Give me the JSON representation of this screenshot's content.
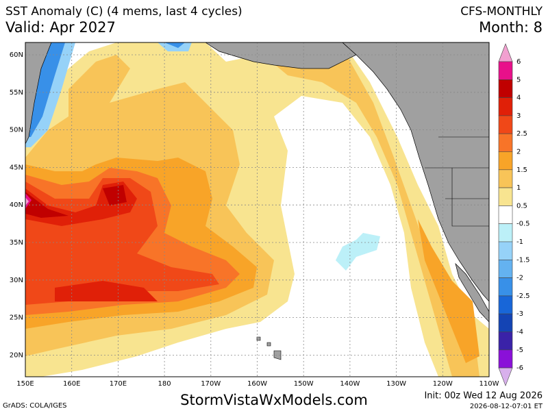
{
  "header": {
    "title": "SST Anomaly (C) (4 mems, last 4 cycles)",
    "valid": "Valid: Apr 2027",
    "model": "CFS-MONTHLY",
    "month": "Month: 8"
  },
  "map": {
    "lat_labels": [
      "60N",
      "55N",
      "50N",
      "45N",
      "40N",
      "35N",
      "30N",
      "25N",
      "20N"
    ],
    "lon_labels": [
      "150E",
      "160E",
      "170E",
      "180",
      "170W",
      "160W",
      "150W",
      "140W",
      "130W",
      "120W",
      "110W"
    ]
  },
  "colorbar": {
    "levels": [
      6,
      5,
      4,
      3,
      2.5,
      2,
      1.5,
      1,
      0.5,
      -0.5,
      -1,
      -1.5,
      -2,
      -2.5,
      -3,
      -4,
      -5,
      -6
    ],
    "colors": [
      "#f2a0d0",
      "#e8108a",
      "#c00000",
      "#e02008",
      "#f04818",
      "#f87428",
      "#f8a428",
      "#f8c458",
      "#f8e490",
      "#ffffff",
      "#bcf0f8",
      "#96d2f8",
      "#64b2f0",
      "#3890e8",
      "#1866d8",
      "#1444b4",
      "#3a22a8",
      "#8a10d8",
      "#d8b0ec"
    ]
  },
  "footer": {
    "credit": "GrADS: COLA/IGES",
    "site": "StormVistaWxModels.com",
    "init": "Init: 00z Wed 12 Aug 2026",
    "stamp": "2026-08-12-07:01 ET"
  }
}
